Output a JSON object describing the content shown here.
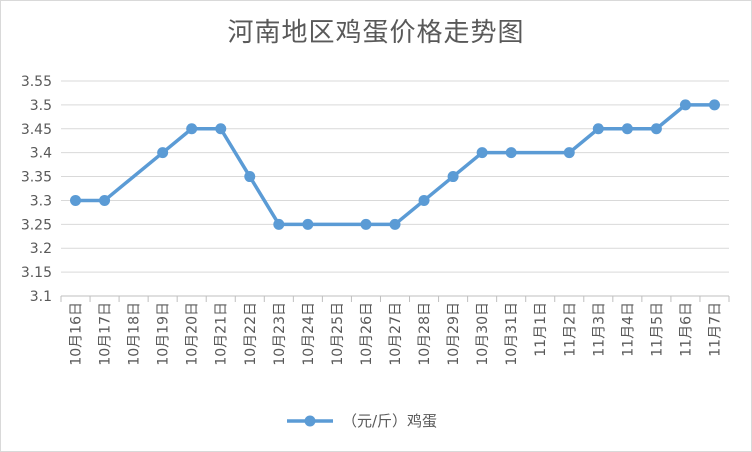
{
  "chart_data": {
    "type": "line",
    "title": "河南地区鸡蛋价格走势图",
    "categories": [
      "10月16日",
      "10月17日",
      "10月18日",
      "10月19日",
      "10月20日",
      "10月21日",
      "10月22日",
      "10月23日",
      "10月24日",
      "10月25日",
      "10月26日",
      "10月27日",
      "10月28日",
      "10月29日",
      "10月30日",
      "10月31日",
      "11月1日",
      "11月2日",
      "11月3日",
      "11月4日",
      "11月5日",
      "11月6日",
      "11月7日"
    ],
    "series": [
      {
        "name": "（元/斤）鸡蛋",
        "values": [
          3.3,
          3.3,
          null,
          3.4,
          3.45,
          3.45,
          3.35,
          3.25,
          3.25,
          null,
          3.25,
          3.25,
          3.3,
          3.35,
          3.4,
          3.4,
          null,
          3.4,
          3.45,
          3.45,
          3.45,
          3.5,
          3.5
        ],
        "color": "#5b9bd5"
      }
    ],
    "y_ticks": [
      "3.1",
      "3.15",
      "3.2",
      "3.25",
      "3.3",
      "3.35",
      "3.4",
      "3.45",
      "3.5",
      "3.55"
    ],
    "ylim": [
      3.1,
      3.55
    ],
    "grid": true,
    "legend": "bottom"
  }
}
